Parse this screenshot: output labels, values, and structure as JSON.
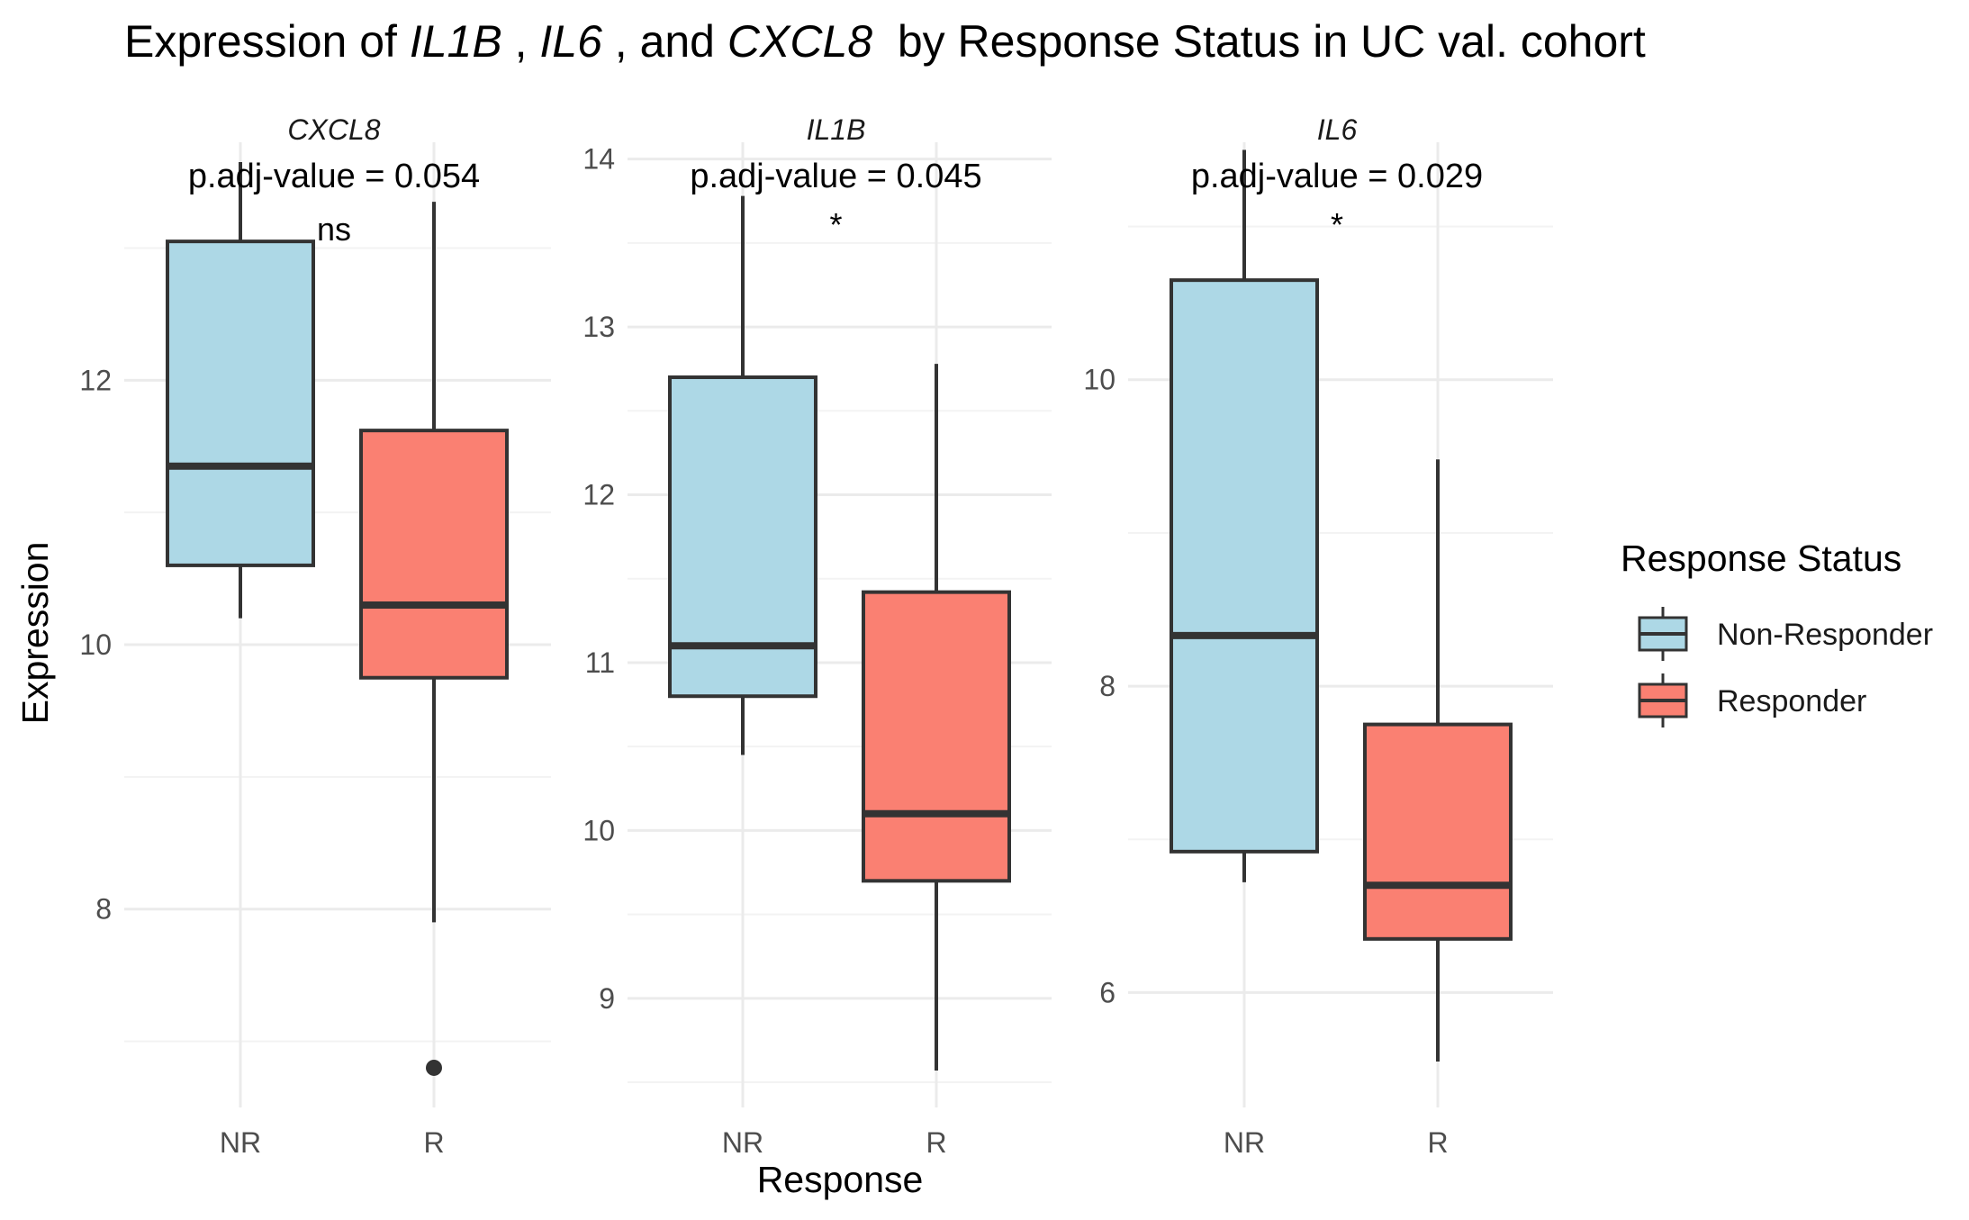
{
  "title": {
    "parts": [
      {
        "text": "Expression of ",
        "italic": false
      },
      {
        "text": "IL1B",
        "italic": true
      },
      {
        "text": " , ",
        "italic": false
      },
      {
        "text": "IL6",
        "italic": true
      },
      {
        "text": " , and ",
        "italic": false
      },
      {
        "text": "CXCL8",
        "italic": true
      },
      {
        "text": "  by Response Status in UC val. cohort",
        "italic": false
      }
    ]
  },
  "axes": {
    "xlabel": "Response",
    "ylabel": "Expression"
  },
  "legend": {
    "title": "Response Status",
    "items": [
      {
        "label": "Non-Responder",
        "color": "#ADD8E6"
      },
      {
        "label": "Responder",
        "color": "#FA8072"
      }
    ]
  },
  "colors": {
    "nr_fill": "#ADD8E6",
    "r_fill": "#FA8072",
    "box_stroke": "#333333",
    "grid_major": "#EBEBEB",
    "grid_minor": "#F3F3F3"
  },
  "chart_data": [
    {
      "type": "boxplot",
      "gene": "CXCL8",
      "p_label": "p.adj-value = 0.054",
      "sig": "ns",
      "categories": [
        "NR",
        "R"
      ],
      "ylim": [
        6.5,
        13.8
      ],
      "yticks": [
        8,
        10,
        12
      ],
      "show_y_ticks": true,
      "boxes": [
        {
          "group": "NR",
          "whisker_low": 10.2,
          "q1": 10.6,
          "median": 11.35,
          "q3": 13.05,
          "whisker_high": 13.65,
          "outliers": []
        },
        {
          "group": "R",
          "whisker_low": 7.9,
          "q1": 9.75,
          "median": 10.3,
          "q3": 11.62,
          "whisker_high": 13.35,
          "outliers": [
            6.8
          ]
        }
      ]
    },
    {
      "type": "boxplot",
      "gene": "IL1B",
      "p_label": "p.adj-value = 0.045",
      "sig": "*",
      "categories": [
        "NR",
        "R"
      ],
      "ylim": [
        8.35,
        14.1
      ],
      "yticks": [
        9,
        10,
        11,
        12,
        13,
        14
      ],
      "show_y_ticks": true,
      "boxes": [
        {
          "group": "NR",
          "whisker_low": 10.45,
          "q1": 10.8,
          "median": 11.1,
          "q3": 12.7,
          "whisker_high": 13.78,
          "outliers": []
        },
        {
          "group": "R",
          "whisker_low": 8.57,
          "q1": 9.7,
          "median": 10.1,
          "q3": 11.42,
          "whisker_high": 12.78,
          "outliers": []
        }
      ]
    },
    {
      "type": "boxplot",
      "gene": "IL6",
      "p_label": "p.adj-value = 0.029",
      "sig": "*",
      "categories": [
        "NR",
        "R"
      ],
      "ylim": [
        5.25,
        11.55
      ],
      "yticks": [
        6,
        8,
        10
      ],
      "show_y_ticks": true,
      "boxes": [
        {
          "group": "NR",
          "whisker_low": 6.72,
          "q1": 6.92,
          "median": 8.33,
          "q3": 10.65,
          "whisker_high": 11.5,
          "outliers": []
        },
        {
          "group": "R",
          "whisker_low": 5.55,
          "q1": 6.35,
          "median": 6.7,
          "q3": 7.75,
          "whisker_high": 9.48,
          "outliers": []
        }
      ]
    }
  ]
}
